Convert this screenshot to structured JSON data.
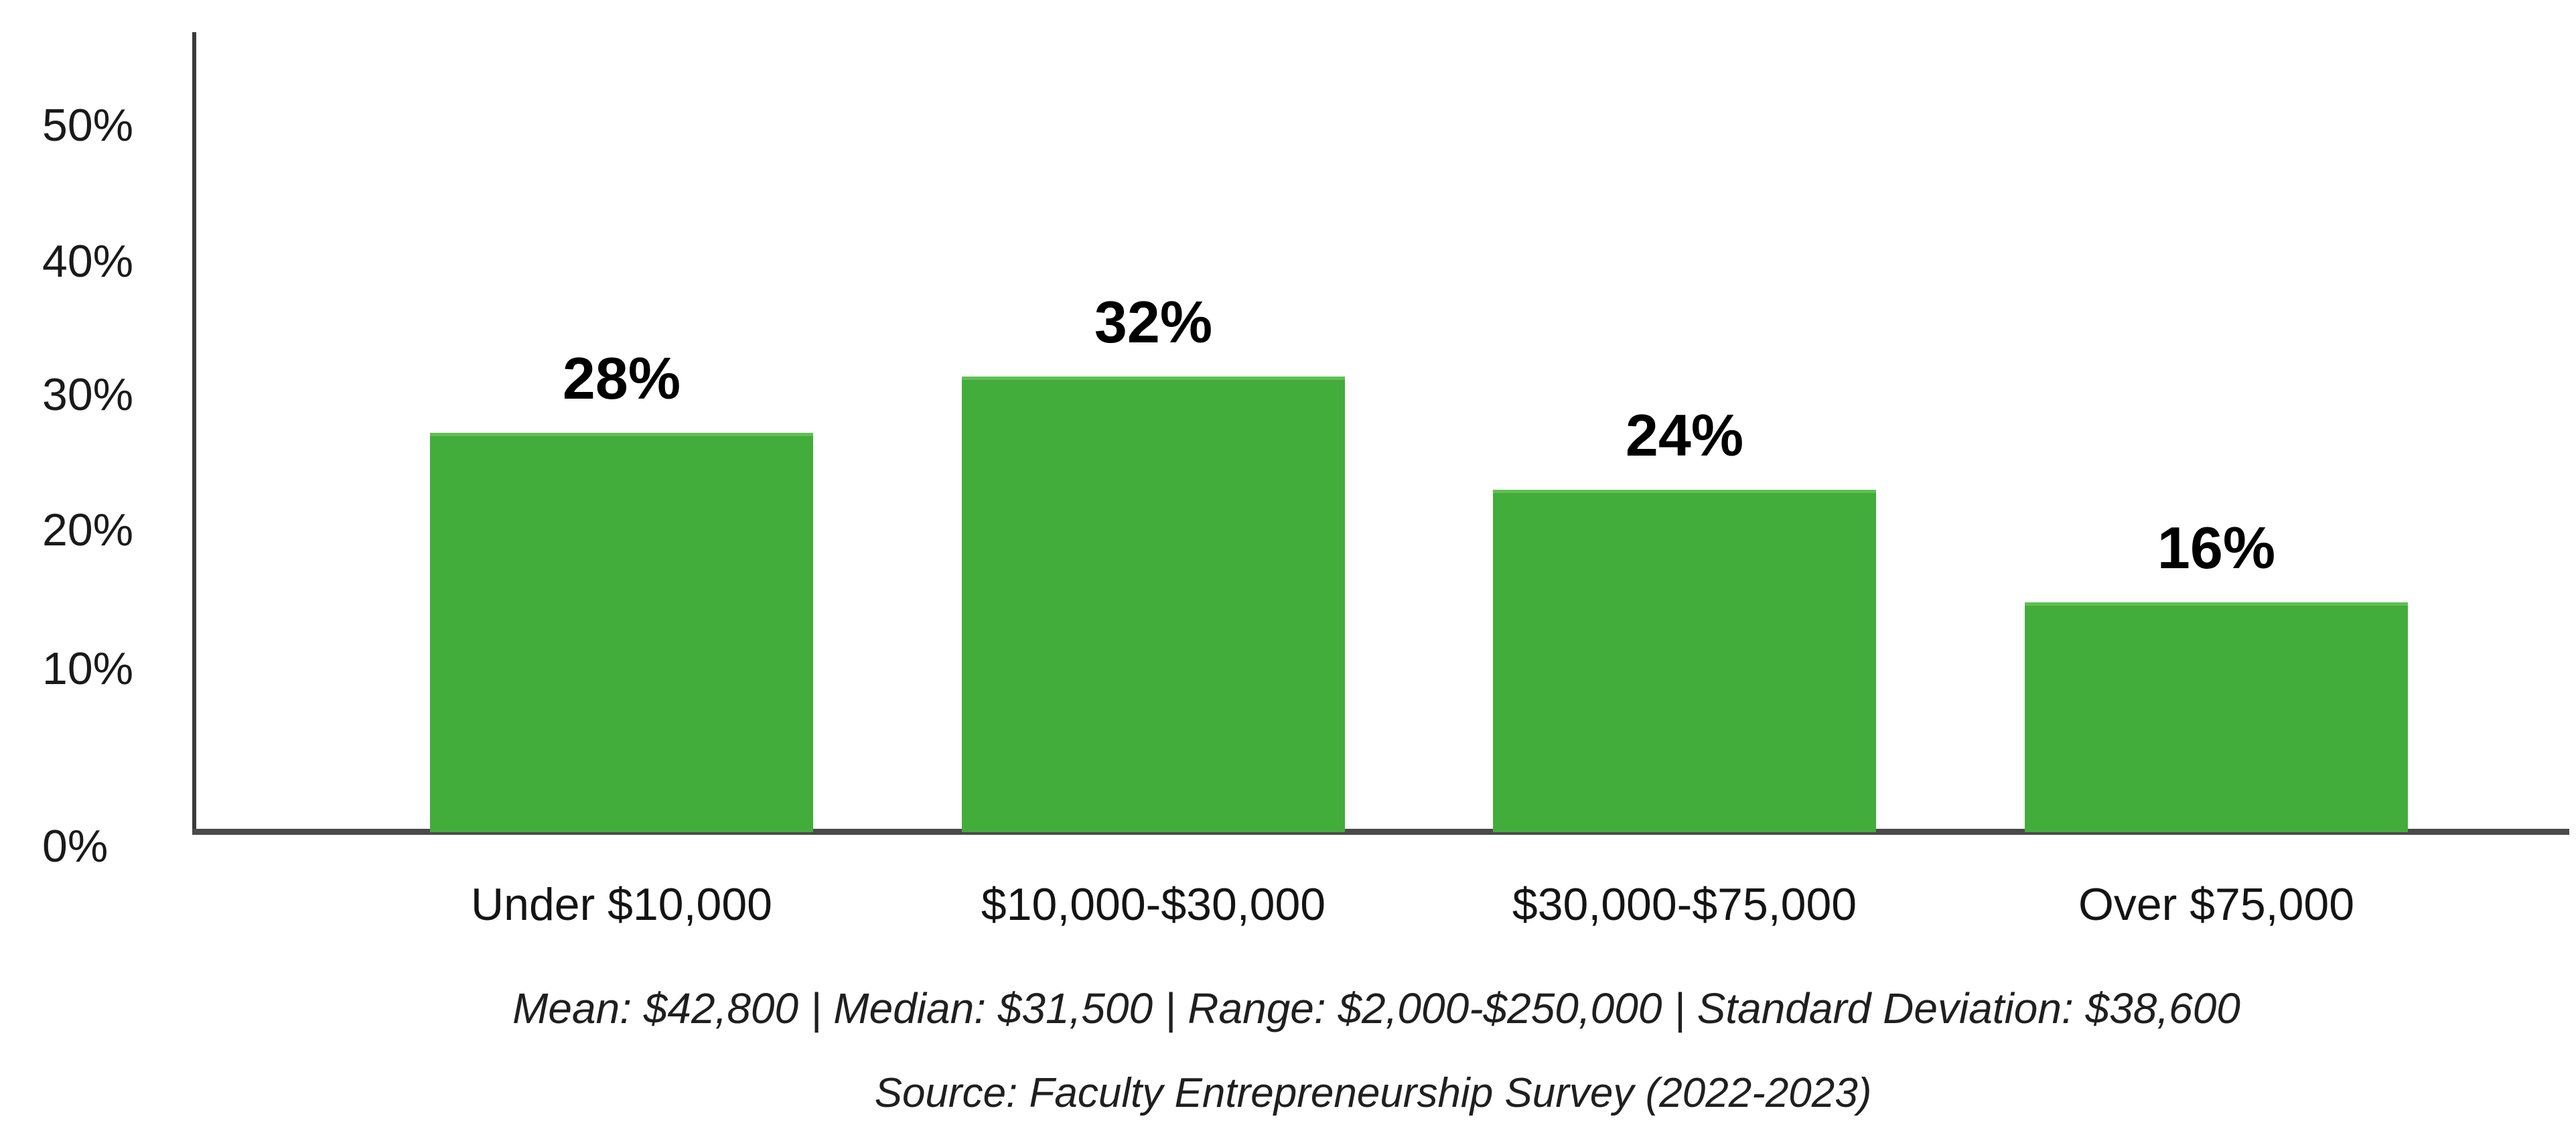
{
  "chart_data": {
    "type": "bar",
    "categories": [
      "Under $10,000",
      "$10,000-$30,000",
      "$30,000-$75,000",
      "Over $75,000"
    ],
    "values": [
      28,
      32,
      24,
      16
    ],
    "value_labels": [
      "28%",
      "32%",
      "24%",
      "16%"
    ],
    "y_axis": {
      "tick_labels": [
        "0%",
        "10%",
        "20%",
        "30%",
        "40%",
        "50%"
      ],
      "range": [
        0,
        55
      ],
      "unit": "percent"
    },
    "xlabel": "",
    "ylabel": "",
    "grid": false,
    "legend": null,
    "colors": {
      "bar_fill": "#43ad3b",
      "bar_top_edge": "#5fc054",
      "axis": "#4a4a4a",
      "text": "#1a1a1a"
    },
    "annotations": {
      "stats_line": "Mean: $42,800 | Median: $31,500 | Range: $2,000-$250,000 | Standard Deviation: $38,600",
      "source_line": "Source: Faculty Entrepreneurship Survey (2022-2023)"
    },
    "stats": {
      "mean": "$42,800",
      "median": "$31,500",
      "range": "$2,000-$250,000",
      "standard_deviation": "$38,600"
    }
  }
}
